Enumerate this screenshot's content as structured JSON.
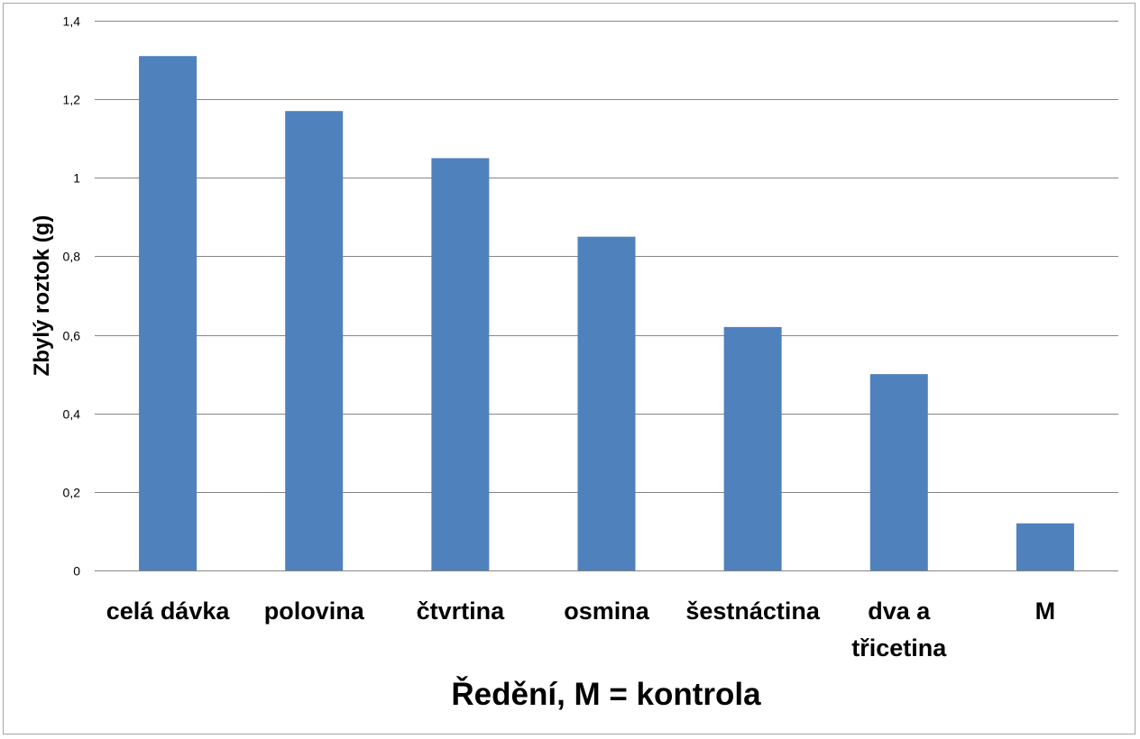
{
  "chart_data": {
    "type": "bar",
    "categories": [
      [
        "celá dávka"
      ],
      [
        "polovina"
      ],
      [
        "čtvrtina"
      ],
      [
        "osmina"
      ],
      [
        "šestnáctina"
      ],
      [
        "dva a",
        "třicetina"
      ],
      [
        "M"
      ]
    ],
    "values": [
      1.31,
      1.17,
      1.05,
      0.85,
      0.62,
      0.5,
      0.12
    ],
    "ylim": [
      0,
      1.4
    ],
    "yticks": [
      0,
      0.2,
      0.4,
      0.6,
      0.8,
      1.0,
      1.2,
      1.4
    ],
    "ytick_labels": [
      "0",
      "0,2",
      "0,4",
      "0,6",
      "0,8",
      "1",
      "1,2",
      "1,4"
    ],
    "xlabel": "Ředění, M = kontrola",
    "ylabel": "Zbylý roztok (g)",
    "grid": true,
    "legend": "none",
    "colors": {
      "bar": "#4f81bd",
      "grid": "#868686",
      "frame": "#a6a6a6"
    }
  }
}
